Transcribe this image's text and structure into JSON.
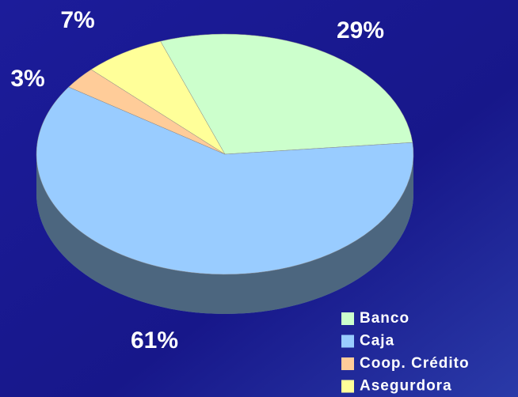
{
  "chart_data": {
    "type": "pie3d",
    "categories": [
      "Banco",
      "Caja",
      "Coop. Crédito",
      "Asegurdora"
    ],
    "values": [
      29,
      61,
      3,
      7
    ],
    "value_labels": [
      "29%",
      "61%",
      "3%",
      "7%"
    ],
    "colors": [
      "#ccffcc",
      "#99ccff",
      "#ffcc99",
      "#ffff99"
    ],
    "legend": "bottom-right"
  }
}
